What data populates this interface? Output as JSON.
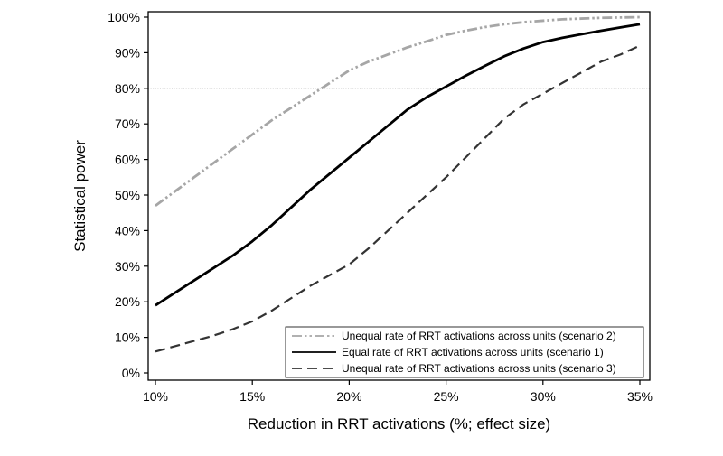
{
  "chart_data": {
    "type": "line",
    "title": "",
    "xlabel": "Reduction in RRT activations (%; effect size)",
    "ylabel": "Statistical power",
    "xlim": [
      10,
      35
    ],
    "ylim": [
      0,
      100
    ],
    "x_ticks": [
      10,
      15,
      20,
      25,
      30,
      35
    ],
    "x_tick_labels": [
      "10%",
      "15%",
      "20%",
      "25%",
      "30%",
      "35%"
    ],
    "y_ticks": [
      0,
      10,
      20,
      30,
      40,
      50,
      60,
      70,
      80,
      90,
      100
    ],
    "y_tick_labels": [
      "0%",
      "10%",
      "20%",
      "30%",
      "40%",
      "50%",
      "60%",
      "70%",
      "80%",
      "90%",
      "100%"
    ],
    "reference_line": {
      "y": 80,
      "style": "dotted"
    },
    "grid": false,
    "legend_position": "bottom-right",
    "series": [
      {
        "name": "Unequal rate of RRT activations across units (scenario 2)",
        "line_style": "dash-dot-dot",
        "color": "#a6a6a6",
        "x": [
          10,
          11,
          12,
          13,
          14,
          15,
          16,
          17,
          18,
          19,
          20,
          21,
          22,
          23,
          24,
          25,
          26,
          27,
          28,
          29,
          30,
          31,
          32,
          33,
          34,
          35
        ],
        "y": [
          47,
          51,
          55,
          59,
          63,
          67,
          71,
          74.5,
          78,
          81.5,
          85,
          87.5,
          89.5,
          91.5,
          93.2,
          95,
          96.2,
          97.2,
          98,
          98.6,
          99,
          99.4,
          99.6,
          99.8,
          99.9,
          100
        ]
      },
      {
        "name": "Equal rate of RRT activations across units (scenario 1)",
        "line_style": "solid",
        "color": "#000000",
        "x": [
          10,
          11,
          12,
          13,
          14,
          15,
          16,
          17,
          18,
          19,
          20,
          21,
          22,
          23,
          24,
          25,
          26,
          27,
          28,
          29,
          30,
          31,
          32,
          33,
          34,
          35
        ],
        "y": [
          19,
          22.5,
          26,
          29.5,
          33,
          37,
          41.5,
          46.5,
          51.5,
          56,
          60.5,
          65,
          69.5,
          74,
          77.5,
          80.5,
          83.5,
          86.3,
          89,
          91.2,
          93,
          94.2,
          95.2,
          96.2,
          97.1,
          98
        ]
      },
      {
        "name": "Unequal rate of RRT activations across units (scenario 3)",
        "line_style": "dashed",
        "color": "#333333",
        "x": [
          10,
          11,
          12,
          13,
          14,
          15,
          16,
          17,
          18,
          19,
          20,
          21,
          22,
          23,
          24,
          25,
          26,
          27,
          28,
          29,
          30,
          31,
          32,
          33,
          34,
          35
        ],
        "y": [
          6,
          7.5,
          9,
          10.5,
          12.3,
          14.5,
          17.5,
          21,
          24.5,
          27.5,
          30.5,
          35,
          40,
          45,
          50,
          55,
          60.5,
          66,
          71.5,
          75.5,
          78.5,
          81.5,
          84.5,
          87.5,
          89.5,
          92
        ]
      }
    ]
  }
}
